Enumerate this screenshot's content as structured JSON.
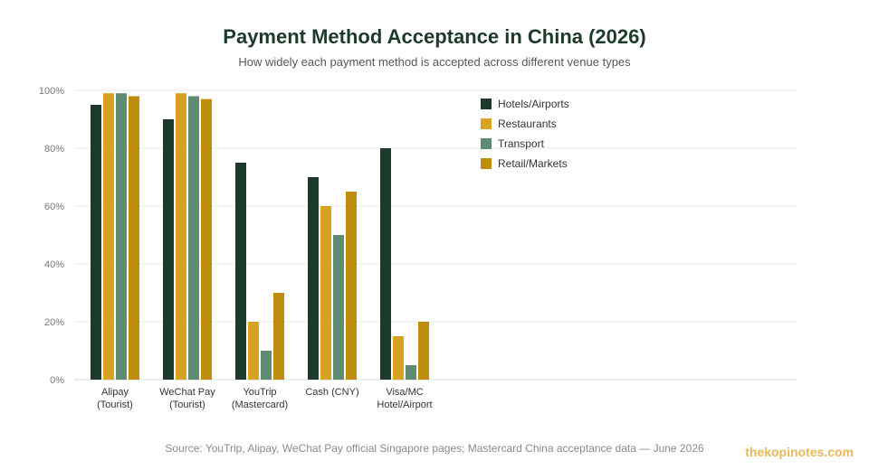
{
  "title": "Payment Method Acceptance in China (2026)",
  "subtitle": "How widely each payment method is accepted across different venue types",
  "source": "Source: YouTrip, Alipay, WeChat Pay official Singapore pages; Mastercard China acceptance data — June 2026",
  "brand": "thekopinotes.com",
  "chart_data": {
    "type": "bar",
    "categories": [
      [
        "Alipay",
        "(Tourist)"
      ],
      [
        "WeChat Pay",
        "(Tourist)"
      ],
      [
        "YouTrip",
        "(Mastercard)"
      ],
      [
        "Cash (CNY)"
      ],
      [
        "Visa/MC",
        "Hotel/Airport"
      ]
    ],
    "series": [
      {
        "name": "Hotels/Airports",
        "color": "#1e3a2a",
        "values": [
          95,
          90,
          75,
          70,
          80
        ]
      },
      {
        "name": "Restaurants",
        "color": "#d9a320",
        "values": [
          99,
          99,
          20,
          60,
          15
        ]
      },
      {
        "name": "Transport",
        "color": "#5e8c72",
        "values": [
          99,
          98,
          10,
          50,
          5
        ]
      },
      {
        "name": "Retail/Markets",
        "color": "#bf8c0c",
        "values": [
          98,
          97,
          30,
          65,
          20
        ]
      }
    ],
    "ylim": [
      0,
      100
    ],
    "yticks": [
      0,
      20,
      40,
      60,
      80,
      100
    ],
    "ytick_labels": [
      "0%",
      "20%",
      "40%",
      "60%",
      "80%",
      "100%"
    ],
    "grid": true,
    "legend_position": "top-right"
  }
}
